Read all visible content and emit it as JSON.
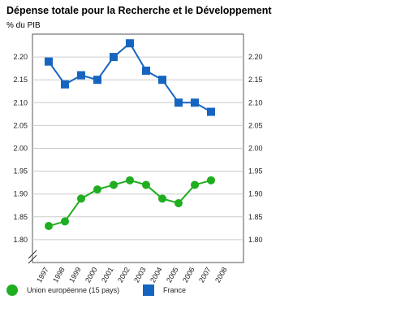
{
  "chart_data": {
    "type": "line",
    "title": "Dépense totale pour la Recherche et le Développement",
    "subtitle": "% du PIB",
    "categories": [
      "1997",
      "1998",
      "1999",
      "2000",
      "2001",
      "2002",
      "2003",
      "2004",
      "2005",
      "2006",
      "2007",
      "2008"
    ],
    "series": [
      {
        "name": "Union européenne (15 pays)",
        "color": "#1fae1f",
        "marker": "circle",
        "values": [
          1.83,
          1.84,
          1.89,
          1.91,
          1.92,
          1.93,
          1.92,
          1.89,
          1.88,
          1.92,
          1.93,
          null
        ]
      },
      {
        "name": "France",
        "color": "#1565c0",
        "marker": "square",
        "values": [
          2.19,
          2.14,
          2.16,
          2.15,
          2.2,
          2.23,
          2.17,
          2.15,
          2.1,
          2.1,
          2.08,
          null
        ]
      }
    ],
    "ylim": [
      1.75,
      2.25
    ],
    "yticks": [
      {
        "value": 1.8,
        "label": "1.80"
      },
      {
        "value": 1.85,
        "label": "1.85"
      },
      {
        "value": 1.9,
        "label": "1.90"
      },
      {
        "value": 1.95,
        "label": "1.95"
      },
      {
        "value": 2.0,
        "label": "2.00"
      },
      {
        "value": 2.05,
        "label": "2.05"
      },
      {
        "value": 2.1,
        "label": "2.10"
      },
      {
        "value": 2.15,
        "label": "2.15"
      },
      {
        "value": 2.2,
        "label": "2.20"
      }
    ],
    "grid": true
  }
}
